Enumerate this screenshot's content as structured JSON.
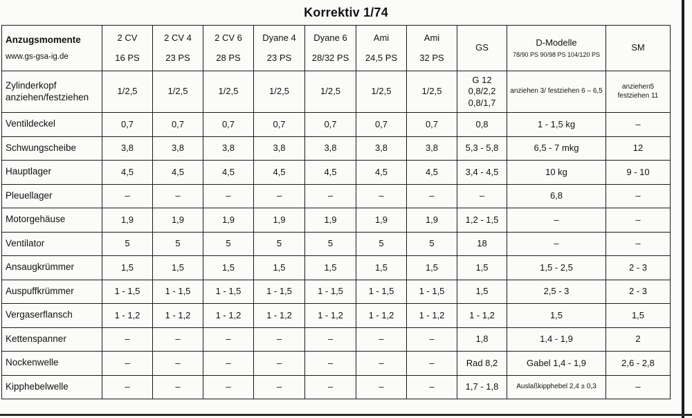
{
  "title": "Korrektiv 1/74",
  "corner": {
    "label": "Anzugsmomente",
    "website": "www.gs-gsa-ig.de"
  },
  "columns": [
    {
      "name": "2 CV",
      "sub": "16 PS"
    },
    {
      "name": "2 CV 4",
      "sub": "23 PS"
    },
    {
      "name": "2 CV 6",
      "sub": "28 PS"
    },
    {
      "name": "Dyane 4",
      "sub": "23 PS"
    },
    {
      "name": "Dyane 6",
      "sub": "28/32 PS"
    },
    {
      "name": "Ami",
      "sub": "24,5 PS"
    },
    {
      "name": "Ami",
      "sub": "32 PS"
    },
    {
      "name": "GS",
      "sub": ""
    },
    {
      "name": "D-Modelle",
      "sub": "78/90 PS 90/98 PS 104/120 PS"
    },
    {
      "name": "SM",
      "sub": ""
    }
  ],
  "rows": [
    {
      "label": "Zylinderkopf anziehen/festziehen",
      "values": [
        "1/2,5",
        "1/2,5",
        "1/2,5",
        "1/2,5",
        "1/2,5",
        "1/2,5",
        "1/2,5",
        "G 12 0,8/2,2 0,8/1,7",
        "anziehen 3/ festziehen 6 – 6,5",
        "anziehen5 festziehen 11"
      ]
    },
    {
      "label": "Ventildeckel",
      "values": [
        "0,7",
        "0,7",
        "0,7",
        "0,7",
        "0,7",
        "0,7",
        "0,7",
        "0,8",
        "1 - 1,5 kg",
        "–"
      ]
    },
    {
      "label": "Schwungscheibe",
      "values": [
        "3,8",
        "3,8",
        "3,8",
        "3,8",
        "3,8",
        "3,8",
        "3,8",
        "5,3 - 5,8",
        "6,5 - 7 mkg",
        "12"
      ]
    },
    {
      "label": "Hauptlager",
      "values": [
        "4,5",
        "4,5",
        "4,5",
        "4,5",
        "4,5",
        "4,5",
        "4,5",
        "3,4 - 4,5",
        "10 kg",
        "9 - 10"
      ]
    },
    {
      "label": "Pleuellager",
      "values": [
        "–",
        "–",
        "–",
        "–",
        "–",
        "–",
        "–",
        "–",
        "6,8",
        "–"
      ]
    },
    {
      "label": "Motorgehäuse",
      "values": [
        "1,9",
        "1,9",
        "1,9",
        "1,9",
        "1,9",
        "1,9",
        "1,9",
        "1,2 - 1,5",
        "–",
        "–"
      ]
    },
    {
      "label": "Ventilator",
      "values": [
        "5",
        "5",
        "5",
        "5",
        "5",
        "5",
        "5",
        "18",
        "–",
        "–"
      ]
    },
    {
      "label": "Ansaugkrümmer",
      "values": [
        "1,5",
        "1,5",
        "1,5",
        "1,5",
        "1,5",
        "1,5",
        "1,5",
        "1,5",
        "1,5 - 2,5",
        "2 - 3"
      ]
    },
    {
      "label": "Auspuffkrümmer",
      "values": [
        "1 - 1,5",
        "1 - 1,5",
        "1 - 1,5",
        "1 - 1,5",
        "1 - 1,5",
        "1 - 1,5",
        "1 - 1,5",
        "1,5",
        "2,5 - 3",
        "2 - 3"
      ]
    },
    {
      "label": "Vergaserflansch",
      "values": [
        "1 - 1,2",
        "1 - 1,2",
        "1 - 1,2",
        "1 - 1,2",
        "1 - 1,2",
        "1 - 1,2",
        "1 - 1,2",
        "1 - 1,2",
        "1,5",
        "1,5"
      ]
    },
    {
      "label": "Kettenspanner",
      "values": [
        "–",
        "–",
        "–",
        "–",
        "–",
        "–",
        "–",
        "1,8",
        "1,4 - 1,9",
        "2"
      ]
    },
    {
      "label": "Nockenwelle",
      "values": [
        "–",
        "–",
        "–",
        "–",
        "–",
        "–",
        "–",
        "Rad 8,2",
        "Gabel 1,4 - 1,9",
        "2,6 - 2,8"
      ]
    },
    {
      "label": "Kipphebelwelle",
      "values": [
        "–",
        "–",
        "–",
        "–",
        "–",
        "–",
        "–",
        "1,7 - 1,8",
        "Auslaßkipphebel 2,4 ± 0,3",
        "–"
      ]
    }
  ]
}
